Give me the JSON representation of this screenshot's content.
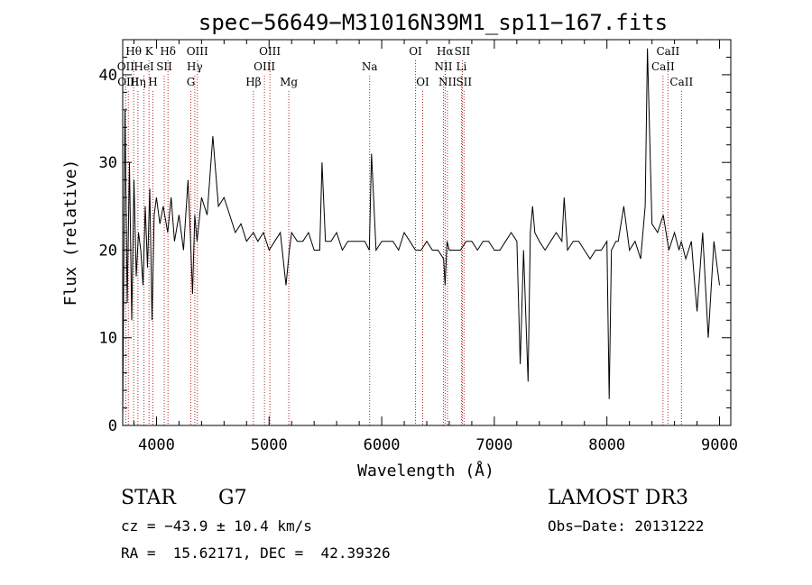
{
  "chart_data": {
    "type": "line",
    "title": "spec−56649−M31016N39M1_sp11−167.fits",
    "xlabel": "Wavelength (Å)",
    "ylabel": "Flux (relative)",
    "xlim": [
      3700,
      9100
    ],
    "ylim": [
      0,
      44
    ],
    "xticks": [
      4000,
      5000,
      6000,
      7000,
      8000,
      9000
    ],
    "yticks": [
      0,
      10,
      20,
      30,
      40
    ],
    "xtick_labels": [
      "4000",
      "5000",
      "6000",
      "7000",
      "8000",
      "9000"
    ],
    "ytick_labels": [
      "0",
      "10",
      "20",
      "30",
      "40"
    ],
    "spectrum": {
      "x": [
        3700,
        3720,
        3740,
        3760,
        3780,
        3800,
        3820,
        3840,
        3860,
        3880,
        3900,
        3920,
        3940,
        3960,
        3980,
        4000,
        4030,
        4060,
        4100,
        4130,
        4160,
        4200,
        4240,
        4280,
        4300,
        4320,
        4340,
        4360,
        4400,
        4450,
        4500,
        4550,
        4600,
        4650,
        4700,
        4750,
        4800,
        4860,
        4900,
        4950,
        5000,
        5050,
        5100,
        5150,
        5180,
        5200,
        5250,
        5300,
        5350,
        5400,
        5450,
        5470,
        5500,
        5550,
        5600,
        5650,
        5700,
        5750,
        5800,
        5850,
        5890,
        5910,
        5950,
        6000,
        6050,
        6100,
        6150,
        6200,
        6250,
        6300,
        6350,
        6400,
        6450,
        6500,
        6550,
        6563,
        6580,
        6600,
        6650,
        6700,
        6750,
        6800,
        6850,
        6900,
        6950,
        7000,
        7050,
        7100,
        7150,
        7200,
        7230,
        7260,
        7300,
        7320,
        7340,
        7360,
        7400,
        7450,
        7500,
        7550,
        7600,
        7620,
        7650,
        7700,
        7750,
        7800,
        7850,
        7900,
        7950,
        8000,
        8020,
        8040,
        8080,
        8100,
        8150,
        8200,
        8250,
        8300,
        8340,
        8360,
        8400,
        8450,
        8500,
        8550,
        8600,
        8640,
        8660,
        8700,
        8750,
        8780,
        8800,
        8850,
        8900,
        8950,
        9000
      ],
      "y": [
        1,
        36,
        14,
        30,
        12,
        28,
        17,
        22,
        20,
        16,
        25,
        18,
        27,
        12,
        24,
        26,
        23,
        25,
        22,
        26,
        21,
        24,
        20,
        28,
        22,
        15,
        24,
        21,
        26,
        24,
        33,
        25,
        26,
        24,
        22,
        23,
        21,
        22,
        21,
        22,
        20,
        21,
        22,
        16,
        20,
        22,
        21,
        21,
        22,
        20,
        20,
        30,
        21,
        21,
        22,
        20,
        21,
        21,
        21,
        21,
        20,
        31,
        20,
        21,
        21,
        21,
        20,
        22,
        21,
        20,
        20,
        21,
        20,
        20,
        19,
        16,
        21,
        20,
        20,
        20,
        21,
        21,
        20,
        21,
        21,
        20,
        20,
        21,
        22,
        21,
        7,
        20,
        5,
        22,
        25,
        22,
        21,
        20,
        21,
        22,
        21,
        26,
        20,
        21,
        21,
        20,
        19,
        20,
        20,
        21,
        3,
        20,
        21,
        21,
        25,
        20,
        21,
        19,
        25,
        43,
        23,
        22,
        24,
        20,
        22,
        20,
        21,
        19,
        21,
        16,
        13,
        22,
        10,
        21,
        16
      ]
    },
    "lines": [
      {
        "name": "Hθ",
        "wl": 3797,
        "row": 0
      },
      {
        "name": "K",
        "wl": 3934,
        "row": 0
      },
      {
        "name": "Hδ",
        "wl": 4102,
        "row": 0
      },
      {
        "name": "OIII",
        "wl": 4363,
        "row": 0
      },
      {
        "name": "OIII",
        "wl": 5007,
        "row": 0
      },
      {
        "name": "OI",
        "wl": 6300,
        "row": 0
      },
      {
        "name": "Hα",
        "wl": 6563,
        "row": 0
      },
      {
        "name": "SII",
        "wl": 6716,
        "row": 0
      },
      {
        "name": "CaII",
        "wl": 8542,
        "row": 0
      },
      {
        "name": "OII",
        "wl": 3727,
        "row": 1
      },
      {
        "name": "HeI",
        "wl": 3889,
        "row": 1
      },
      {
        "name": "SII",
        "wl": 4069,
        "row": 1
      },
      {
        "name": "Hγ",
        "wl": 4340,
        "row": 1
      },
      {
        "name": "OIII",
        "wl": 4959,
        "row": 1
      },
      {
        "name": "Na",
        "wl": 5893,
        "row": 1
      },
      {
        "name": "NII",
        "wl": 6548,
        "row": 1
      },
      {
        "name": "Li",
        "wl": 6708,
        "row": 1
      },
      {
        "name": "CaII",
        "wl": 8498,
        "row": 1
      },
      {
        "name": "OIII",
        "wl": 3750,
        "row": 2
      },
      {
        "name": "Hη",
        "wl": 3835,
        "row": 2
      },
      {
        "name": "H",
        "wl": 3968,
        "row": 2
      },
      {
        "name": "G",
        "wl": 4305,
        "row": 2
      },
      {
        "name": "Hβ",
        "wl": 4861,
        "row": 2
      },
      {
        "name": "Mg",
        "wl": 5175,
        "row": 2
      },
      {
        "name": "OI",
        "wl": 6364,
        "row": 2
      },
      {
        "name": "NII",
        "wl": 6584,
        "row": 2
      },
      {
        "name": "SII",
        "wl": 6731,
        "row": 2
      },
      {
        "name": "CaII",
        "wl": 8662,
        "row": 2
      }
    ],
    "line_color": "#b22222",
    "spectrum_color": "#000000"
  },
  "info": {
    "class": "STAR",
    "subclass": "G7",
    "survey": "LAMOST DR3",
    "cz": "cz = −43.9 ± 10.4 km/s",
    "obs_date": "Obs−Date: 20131222",
    "coords": "RA =  15.62171, DEC =  42.39326"
  }
}
